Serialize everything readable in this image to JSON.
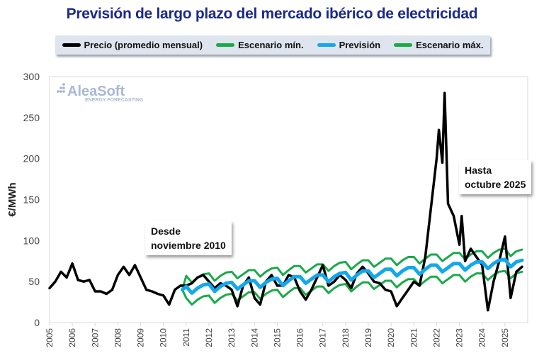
{
  "chart_data": {
    "type": "line",
    "title": "Previsión de largo plazo del mercado ibérico de electricidad",
    "ylabel": "€/MWh",
    "xlabel": "",
    "ylim": [
      0,
      300
    ],
    "xlim": [
      2005,
      2026
    ],
    "yticks": [
      0,
      50,
      100,
      150,
      200,
      250,
      300
    ],
    "xticks": [
      "2005",
      "2006",
      "2007",
      "2008",
      "2009",
      "2010",
      "2011",
      "2012",
      "2013",
      "2014",
      "2015",
      "2016",
      "2017",
      "2018",
      "2019",
      "2020",
      "2021",
      "2022",
      "2023",
      "2024",
      "2025"
    ],
    "grid": false,
    "legend_position": "top",
    "watermark": {
      "name": "AleaSoft",
      "tagline": "ENERGY FORECASTING"
    },
    "annotations": [
      {
        "line1": "Desde",
        "line2": "noviembre 2010"
      },
      {
        "line1": "Hasta",
        "line2": "octubre 2025"
      }
    ],
    "series": [
      {
        "name": "Precio (promedio mensual)",
        "color": "#000000",
        "points": [
          [
            2005,
            42
          ],
          [
            2005.25,
            50
          ],
          [
            2005.5,
            62
          ],
          [
            2005.75,
            55
          ],
          [
            2006,
            72
          ],
          [
            2006.25,
            52
          ],
          [
            2006.5,
            50
          ],
          [
            2006.75,
            52
          ],
          [
            2007,
            38
          ],
          [
            2007.25,
            38
          ],
          [
            2007.5,
            35
          ],
          [
            2007.75,
            40
          ],
          [
            2008,
            58
          ],
          [
            2008.25,
            68
          ],
          [
            2008.5,
            58
          ],
          [
            2008.75,
            70
          ],
          [
            2009,
            55
          ],
          [
            2009.25,
            40
          ],
          [
            2009.5,
            38
          ],
          [
            2009.75,
            35
          ],
          [
            2010,
            33
          ],
          [
            2010.25,
            22
          ],
          [
            2010.5,
            40
          ],
          [
            2010.75,
            45
          ],
          [
            2011,
            45
          ],
          [
            2011.25,
            48
          ],
          [
            2011.5,
            55
          ],
          [
            2011.75,
            58
          ],
          [
            2012,
            50
          ],
          [
            2012.25,
            42
          ],
          [
            2012.5,
            48
          ],
          [
            2012.75,
            45
          ],
          [
            2013,
            40
          ],
          [
            2013.25,
            20
          ],
          [
            2013.5,
            45
          ],
          [
            2013.75,
            55
          ],
          [
            2014,
            30
          ],
          [
            2014.25,
            22
          ],
          [
            2014.5,
            50
          ],
          [
            2014.75,
            58
          ],
          [
            2015,
            45
          ],
          [
            2015.25,
            45
          ],
          [
            2015.5,
            58
          ],
          [
            2015.75,
            55
          ],
          [
            2016,
            38
          ],
          [
            2016.25,
            28
          ],
          [
            2016.5,
            40
          ],
          [
            2016.75,
            55
          ],
          [
            2017,
            70
          ],
          [
            2017.25,
            45
          ],
          [
            2017.5,
            50
          ],
          [
            2017.75,
            58
          ],
          [
            2018,
            52
          ],
          [
            2018.25,
            42
          ],
          [
            2018.5,
            60
          ],
          [
            2018.75,
            68
          ],
          [
            2019,
            60
          ],
          [
            2019.25,
            50
          ],
          [
            2019.5,
            48
          ],
          [
            2019.75,
            40
          ],
          [
            2020,
            38
          ],
          [
            2020.25,
            20
          ],
          [
            2020.5,
            30
          ],
          [
            2020.75,
            40
          ],
          [
            2021,
            50
          ],
          [
            2021.25,
            45
          ],
          [
            2021.5,
            80
          ],
          [
            2021.75,
            140
          ],
          [
            2022,
            200
          ],
          [
            2022.1,
            235
          ],
          [
            2022.25,
            195
          ],
          [
            2022.35,
            280
          ],
          [
            2022.5,
            145
          ],
          [
            2022.75,
            130
          ],
          [
            2023,
            95
          ],
          [
            2023.1,
            130
          ],
          [
            2023.25,
            75
          ],
          [
            2023.5,
            90
          ],
          [
            2023.75,
            80
          ],
          [
            2024,
            70
          ],
          [
            2024.25,
            15
          ],
          [
            2024.5,
            50
          ],
          [
            2024.75,
            75
          ],
          [
            2025,
            105
          ],
          [
            2025.25,
            30
          ],
          [
            2025.5,
            62
          ],
          [
            2025.75,
            68
          ]
        ]
      },
      {
        "name": "Escenario mín.",
        "color": "#1aaa4a",
        "x": [
          2010.83,
          2011,
          2011.25,
          2011.5,
          2011.75,
          2012,
          2012.25,
          2012.5,
          2012.75,
          2013,
          2013.25,
          2013.5,
          2013.75,
          2014,
          2014.25,
          2014.5,
          2014.75,
          2015,
          2015.25,
          2015.5,
          2015.75,
          2016,
          2016.25,
          2016.5,
          2016.75,
          2017,
          2017.25,
          2017.5,
          2017.75,
          2018,
          2018.25,
          2018.5,
          2018.75,
          2019,
          2019.25,
          2019.5,
          2019.75,
          2020,
          2020.25,
          2020.5,
          2020.75,
          2021,
          2021.25,
          2021.5,
          2021.75,
          2022,
          2022.25,
          2022.5,
          2022.75,
          2023,
          2023.25,
          2023.5,
          2023.75,
          2024,
          2024.25,
          2024.5,
          2024.75,
          2025,
          2025.25,
          2025.5,
          2025.75
        ],
        "values": [
          40,
          30,
          22,
          28,
          32,
          33,
          24,
          30,
          34,
          35,
          27,
          32,
          37,
          37,
          29,
          35,
          39,
          40,
          31,
          37,
          42,
          42,
          34,
          39,
          44,
          44,
          36,
          42,
          46,
          47,
          38,
          44,
          49,
          49,
          41,
          46,
          51,
          51,
          43,
          49,
          53,
          53,
          45,
          51,
          56,
          56,
          48,
          53,
          58,
          58,
          50,
          56,
          60,
          60,
          52,
          58,
          62,
          63,
          54,
          60,
          62
        ]
      },
      {
        "name": "Previsión",
        "color": "#12a8ec",
        "x": [
          2010.83,
          2011,
          2011.25,
          2011.5,
          2011.75,
          2012,
          2012.25,
          2012.5,
          2012.75,
          2013,
          2013.25,
          2013.5,
          2013.75,
          2014,
          2014.25,
          2014.5,
          2014.75,
          2015,
          2015.25,
          2015.5,
          2015.75,
          2016,
          2016.25,
          2016.5,
          2016.75,
          2017,
          2017.25,
          2017.5,
          2017.75,
          2018,
          2018.25,
          2018.5,
          2018.75,
          2019,
          2019.25,
          2019.5,
          2019.75,
          2020,
          2020.25,
          2020.5,
          2020.75,
          2021,
          2021.25,
          2021.5,
          2021.75,
          2022,
          2022.25,
          2022.5,
          2022.75,
          2023,
          2023.25,
          2023.5,
          2023.75,
          2024,
          2024.25,
          2024.5,
          2024.75,
          2025,
          2025.25,
          2025.5,
          2025.75
        ],
        "values": [
          40,
          44,
          36,
          42,
          46,
          47,
          38,
          44,
          48,
          49,
          41,
          46,
          51,
          51,
          43,
          49,
          53,
          54,
          45,
          51,
          56,
          56,
          48,
          53,
          58,
          58,
          50,
          56,
          60,
          61,
          52,
          58,
          63,
          63,
          55,
          60,
          65,
          65,
          57,
          63,
          67,
          67,
          59,
          65,
          70,
          70,
          62,
          67,
          72,
          72,
          64,
          70,
          74,
          74,
          66,
          72,
          76,
          77,
          68,
          74,
          76
        ]
      },
      {
        "name": "Escenario máx.",
        "color": "#1aaa4a",
        "x": [
          2010.83,
          2011,
          2011.25,
          2011.5,
          2011.75,
          2012,
          2012.25,
          2012.5,
          2012.75,
          2013,
          2013.25,
          2013.5,
          2013.75,
          2014,
          2014.25,
          2014.5,
          2014.75,
          2015,
          2015.25,
          2015.5,
          2015.75,
          2016,
          2016.25,
          2016.5,
          2016.75,
          2017,
          2017.25,
          2017.5,
          2017.75,
          2018,
          2018.25,
          2018.5,
          2018.75,
          2019,
          2019.25,
          2019.5,
          2019.75,
          2020,
          2020.25,
          2020.5,
          2020.75,
          2021,
          2021.25,
          2021.5,
          2021.75,
          2022,
          2022.25,
          2022.5,
          2022.75,
          2023,
          2023.25,
          2023.5,
          2023.75,
          2024,
          2024.25,
          2024.5,
          2024.75,
          2025,
          2025.25,
          2025.5,
          2025.75
        ],
        "values": [
          40,
          57,
          49,
          55,
          59,
          60,
          51,
          57,
          61,
          62,
          54,
          59,
          64,
          64,
          56,
          62,
          66,
          67,
          58,
          64,
          69,
          69,
          61,
          66,
          71,
          71,
          63,
          69,
          73,
          74,
          65,
          71,
          76,
          76,
          68,
          73,
          78,
          78,
          70,
          76,
          80,
          80,
          72,
          78,
          83,
          83,
          75,
          80,
          85,
          85,
          77,
          83,
          87,
          87,
          79,
          85,
          89,
          90,
          81,
          87,
          89
        ]
      }
    ]
  }
}
